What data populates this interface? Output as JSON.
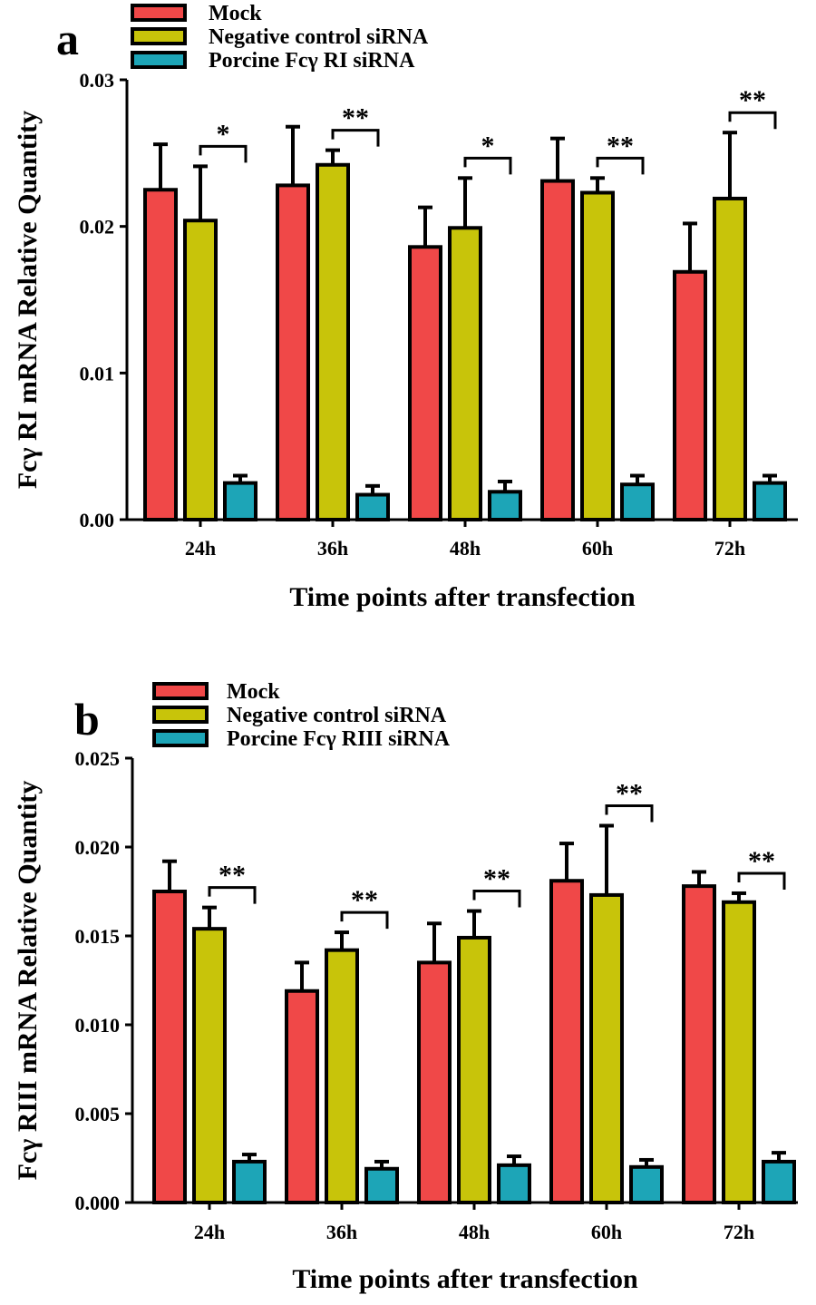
{
  "colors": {
    "mock": "#f04848",
    "negative": "#c8c40a",
    "porcine": "#1da5b7",
    "outline": "#000000"
  },
  "chart_data": [
    {
      "type": "bar",
      "panel_label": "a",
      "categories": [
        "24h",
        "36h",
        "48h",
        "60h",
        "72h"
      ],
      "series": [
        {
          "name": "Mock",
          "values": [
            0.0225,
            0.0228,
            0.0186,
            0.0231,
            0.0169
          ],
          "errors": [
            0.0031,
            0.004,
            0.0027,
            0.0029,
            0.0033
          ]
        },
        {
          "name": "Negative control siRNA",
          "values": [
            0.0204,
            0.0242,
            0.0199,
            0.0223,
            0.0219
          ],
          "errors": [
            0.0037,
            0.001,
            0.0034,
            0.001,
            0.0045
          ]
        },
        {
          "name": "Porcine Fcγ  RI siRNA",
          "values": [
            0.0025,
            0.0017,
            0.0019,
            0.0024,
            0.0025
          ],
          "errors": [
            0.0005,
            0.0006,
            0.0007,
            0.0006,
            0.0005
          ]
        }
      ],
      "significance": [
        "*",
        "**",
        "*",
        "**",
        "**"
      ],
      "xlabel": "Time points after transfection",
      "ylabel": "Fcγ  RI mRNA Relative Quantity",
      "ylim": [
        0,
        0.03
      ],
      "yticks": [
        0.0,
        0.01,
        0.02,
        0.03
      ],
      "ytick_labels": [
        "0.00",
        "0.01",
        "0.02",
        "0.03"
      ],
      "legend_position": "top-center"
    },
    {
      "type": "bar",
      "panel_label": "b",
      "categories": [
        "24h",
        "36h",
        "48h",
        "60h",
        "72h"
      ],
      "series": [
        {
          "name": "Mock",
          "values": [
            0.0175,
            0.0119,
            0.0135,
            0.0181,
            0.0178
          ],
          "errors": [
            0.0017,
            0.0016,
            0.0022,
            0.0021,
            0.0008
          ]
        },
        {
          "name": "Negative control siRNA",
          "values": [
            0.0154,
            0.0142,
            0.0149,
            0.0173,
            0.0169
          ],
          "errors": [
            0.0012,
            0.001,
            0.0015,
            0.0039,
            0.0005
          ]
        },
        {
          "name": "Porcine Fcγ  RIII siRNA",
          "values": [
            0.0023,
            0.0019,
            0.0021,
            0.002,
            0.0023
          ],
          "errors": [
            0.0004,
            0.0004,
            0.0005,
            0.0004,
            0.0005
          ]
        }
      ],
      "significance": [
        "**",
        "**",
        "**",
        "**",
        "**"
      ],
      "xlabel": "Time points after transfection",
      "ylabel": "Fcγ  RIII mRNA Relative Quantity",
      "ylim": [
        0,
        0.025
      ],
      "yticks": [
        0.0,
        0.005,
        0.01,
        0.015,
        0.02,
        0.025
      ],
      "ytick_labels": [
        "0.000",
        "0.005",
        "0.010",
        "0.015",
        "0.020",
        "0.025"
      ],
      "legend_position": "top-center"
    }
  ]
}
